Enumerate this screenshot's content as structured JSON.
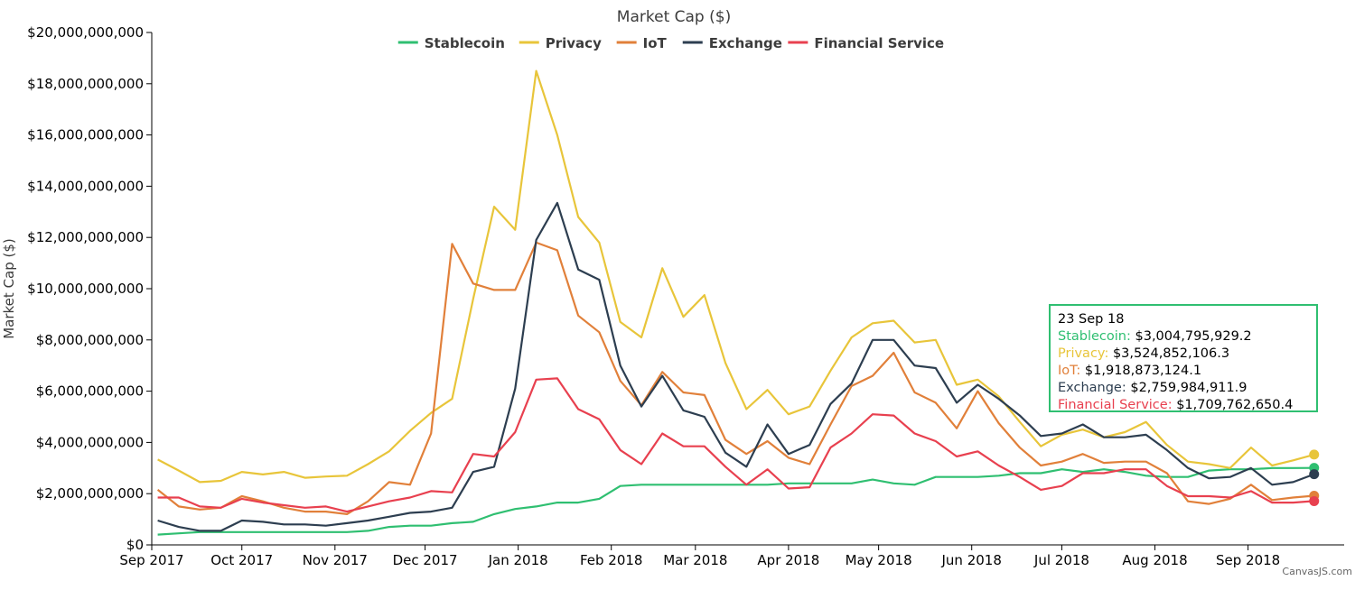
{
  "chart_data": {
    "type": "line",
    "title": "Market Cap ($)",
    "ylabel": "Market Cap ($)",
    "xlabel": "",
    "ylim": [
      0,
      20000000000
    ],
    "y_ticks": [
      0,
      2000000000,
      4000000000,
      6000000000,
      8000000000,
      10000000000,
      12000000000,
      14000000000,
      16000000000,
      18000000000,
      20000000000
    ],
    "y_tick_labels": [
      "$0",
      "$2,000,000,000",
      "$4,000,000,000",
      "$6,000,000,000",
      "$8,000,000,000",
      "$10,000,000,000",
      "$12,000,000,000",
      "$14,000,000,000",
      "$16,000,000,000",
      "$18,000,000,000",
      "$20,000,000,000"
    ],
    "x_ticks": [
      "2017-09-01",
      "2017-10-01",
      "2017-11-01",
      "2017-12-01",
      "2018-01-01",
      "2018-02-01",
      "2018-03-01",
      "2018-04-01",
      "2018-05-01",
      "2018-06-01",
      "2018-07-01",
      "2018-08-01",
      "2018-09-01"
    ],
    "x_tick_labels": [
      "Sep 2017",
      "Oct 2017",
      "Nov 2017",
      "Dec 2017",
      "Jan 2018",
      "Feb 2018",
      "Mar 2018",
      "Apr 2018",
      "May 2018",
      "Jun 2018",
      "Jul 2018",
      "Aug 2018",
      "Sep 2018"
    ],
    "xlim": [
      "2017-09-01",
      "2018-10-03"
    ],
    "legend_position": "top-center",
    "grid": false,
    "x": [
      "2017-09-03",
      "2017-09-10",
      "2017-09-17",
      "2017-09-24",
      "2017-10-01",
      "2017-10-08",
      "2017-10-15",
      "2017-10-22",
      "2017-10-29",
      "2017-11-05",
      "2017-11-12",
      "2017-11-19",
      "2017-11-26",
      "2017-12-03",
      "2017-12-10",
      "2017-12-17",
      "2017-12-24",
      "2017-12-31",
      "2018-01-07",
      "2018-01-14",
      "2018-01-21",
      "2018-01-28",
      "2018-02-04",
      "2018-02-11",
      "2018-02-18",
      "2018-02-25",
      "2018-03-04",
      "2018-03-11",
      "2018-03-18",
      "2018-03-25",
      "2018-04-01",
      "2018-04-08",
      "2018-04-15",
      "2018-04-22",
      "2018-04-29",
      "2018-05-06",
      "2018-05-13",
      "2018-05-20",
      "2018-05-27",
      "2018-06-03",
      "2018-06-10",
      "2018-06-17",
      "2018-06-24",
      "2018-07-01",
      "2018-07-08",
      "2018-07-15",
      "2018-07-22",
      "2018-07-29",
      "2018-08-05",
      "2018-08-12",
      "2018-08-19",
      "2018-08-26",
      "2018-09-02",
      "2018-09-09",
      "2018-09-16",
      "2018-09-23"
    ],
    "series": [
      {
        "name": "Stablecoin",
        "color": "#2fbf71",
        "values": [
          400000000,
          450000000,
          500000000,
          500000000,
          500000000,
          500000000,
          500000000,
          500000000,
          500000000,
          500000000,
          550000000,
          700000000,
          750000000,
          750000000,
          850000000,
          900000000,
          1200000000,
          1400000000,
          1500000000,
          1650000000,
          1650000000,
          1800000000,
          2300000000,
          2350000000,
          2350000000,
          2350000000,
          2350000000,
          2350000000,
          2350000000,
          2350000000,
          2400000000,
          2400000000,
          2400000000,
          2400000000,
          2550000000,
          2400000000,
          2350000000,
          2650000000,
          2650000000,
          2650000000,
          2700000000,
          2800000000,
          2800000000,
          2950000000,
          2850000000,
          2950000000,
          2850000000,
          2700000000,
          2650000000,
          2650000000,
          2900000000,
          2950000000,
          2950000000,
          3000000000,
          3000000000,
          3004795929.2
        ]
      },
      {
        "name": "Privacy",
        "color": "#e8c53a",
        "values": [
          3330000000,
          2900000000,
          2450000000,
          2500000000,
          2850000000,
          2750000000,
          2850000000,
          2620000000,
          2670000000,
          2700000000,
          3150000000,
          3650000000,
          4450000000,
          5150000000,
          5700000000,
          9600000000,
          13200000000,
          12300000000,
          18500000000,
          16000000000,
          12800000000,
          11800000000,
          8700000000,
          8100000000,
          10800000000,
          8900000000,
          9750000000,
          7100000000,
          5300000000,
          6050000000,
          5100000000,
          5400000000,
          6800000000,
          8100000000,
          8650000000,
          8750000000,
          7900000000,
          8000000000,
          6250000000,
          6450000000,
          5800000000,
          4800000000,
          3850000000,
          4300000000,
          4500000000,
          4200000000,
          4400000000,
          4800000000,
          3900000000,
          3250000000,
          3150000000,
          3000000000,
          3800000000,
          3100000000,
          3300000000,
          3524852106.3
        ]
      },
      {
        "name": "IoT",
        "color": "#e1803a",
        "values": [
          2150000000,
          1500000000,
          1380000000,
          1450000000,
          1900000000,
          1700000000,
          1450000000,
          1300000000,
          1300000000,
          1200000000,
          1700000000,
          2450000000,
          2350000000,
          4350000000,
          11750000000,
          10200000000,
          9950000000,
          9950000000,
          11800000000,
          11500000000,
          8950000000,
          8300000000,
          6400000000,
          5450000000,
          6750000000,
          5950000000,
          5850000000,
          4100000000,
          3550000000,
          4050000000,
          3400000000,
          3150000000,
          4700000000,
          6200000000,
          6600000000,
          7500000000,
          5950000000,
          5550000000,
          4550000000,
          6000000000,
          4750000000,
          3800000000,
          3100000000,
          3250000000,
          3550000000,
          3200000000,
          3250000000,
          3250000000,
          2800000000,
          1700000000,
          1600000000,
          1800000000,
          2350000000,
          1750000000,
          1850000000,
          1918873124.1
        ]
      },
      {
        "name": "Exchange",
        "color": "#2d3e50",
        "values": [
          950000000,
          700000000,
          550000000,
          550000000,
          950000000,
          900000000,
          800000000,
          800000000,
          750000000,
          850000000,
          950000000,
          1100000000,
          1250000000,
          1300000000,
          1450000000,
          2850000000,
          3050000000,
          6100000000,
          11900000000,
          13350000000,
          10750000000,
          10350000000,
          7000000000,
          5400000000,
          6600000000,
          5250000000,
          5000000000,
          3600000000,
          3050000000,
          4700000000,
          3550000000,
          3900000000,
          5500000000,
          6300000000,
          8000000000,
          8000000000,
          7000000000,
          6900000000,
          5550000000,
          6250000000,
          5700000000,
          5050000000,
          4250000000,
          4350000000,
          4700000000,
          4200000000,
          4200000000,
          4300000000,
          3700000000,
          3000000000,
          2600000000,
          2650000000,
          3000000000,
          2350000000,
          2450000000,
          2759984911.9
        ]
      },
      {
        "name": "Financial Service",
        "color": "#e8404f",
        "values": [
          1850000000,
          1850000000,
          1500000000,
          1450000000,
          1800000000,
          1650000000,
          1550000000,
          1450000000,
          1500000000,
          1300000000,
          1500000000,
          1700000000,
          1850000000,
          2100000000,
          2050000000,
          3550000000,
          3450000000,
          4400000000,
          6450000000,
          6500000000,
          5300000000,
          4900000000,
          3700000000,
          3150000000,
          4350000000,
          3850000000,
          3850000000,
          3050000000,
          2350000000,
          2950000000,
          2200000000,
          2250000000,
          3800000000,
          4350000000,
          5100000000,
          5050000000,
          4350000000,
          4050000000,
          3450000000,
          3650000000,
          3100000000,
          2650000000,
          2150000000,
          2300000000,
          2800000000,
          2800000000,
          2950000000,
          2950000000,
          2300000000,
          1900000000,
          1900000000,
          1850000000,
          2100000000,
          1650000000,
          1650000000,
          1709762650.4
        ]
      }
    ]
  },
  "tooltip": {
    "date": "23 Sep 18",
    "border_color": "#2fbf71",
    "rows": [
      {
        "label": "Stablecoin:",
        "value": "$3,004,795,929.2",
        "color": "#2fbf71"
      },
      {
        "label": "Privacy:",
        "value": "$3,524,852,106.3",
        "color": "#e8c53a"
      },
      {
        "label": "IoT:",
        "value": "$1,918,873,124.1",
        "color": "#e1803a"
      },
      {
        "label": "Exchange:",
        "value": "$2,759,984,911.9",
        "color": "#2d3e50"
      },
      {
        "label": "Financial Service:",
        "value": "$1,709,762,650.4",
        "color": "#e8404f"
      }
    ]
  },
  "credit": "CanvasJS.com"
}
